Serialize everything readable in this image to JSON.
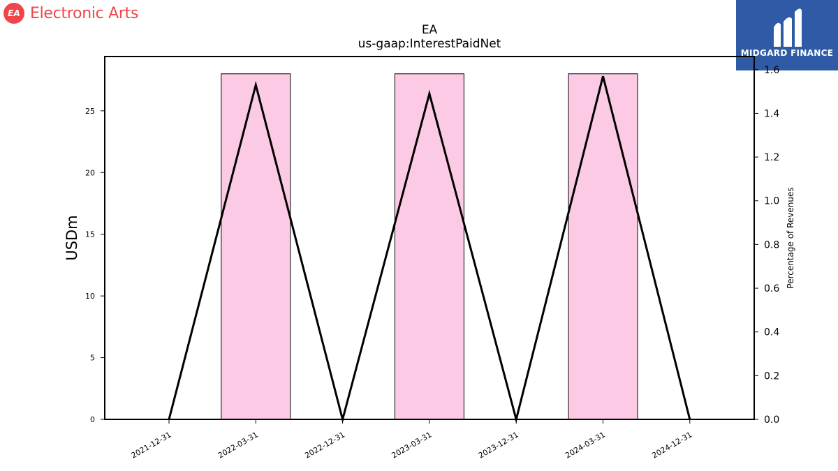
{
  "brand": {
    "badge": "EA",
    "name": "Electronic Arts"
  },
  "sponsor": {
    "name": "MIDGARD FINANCE"
  },
  "chart_data": {
    "type": "bar",
    "title": "EA",
    "subtitle": "us-gaap:InterestPaidNet",
    "ylabel": "USDm",
    "y2label": "Percentage of Revenues",
    "categories": [
      "2021-12-31",
      "2022-03-31",
      "2022-12-31",
      "2023-03-31",
      "2023-12-31",
      "2024-03-31",
      "2024-12-31"
    ],
    "ylim": [
      0,
      29.4
    ],
    "yticks": [
      0,
      5,
      10,
      15,
      20,
      25
    ],
    "y2lim": [
      0,
      1.66
    ],
    "y2ticks": [
      "0.0",
      "0.2",
      "0.4",
      "0.6",
      "0.8",
      "1.0",
      "1.2",
      "1.4",
      "1.6"
    ],
    "series": [
      {
        "type": "bar",
        "values": [
          null,
          28,
          null,
          28,
          null,
          28,
          null
        ],
        "color": "#fccae4"
      },
      {
        "type": "line",
        "axis": "right",
        "values": [
          0,
          1.53,
          0,
          1.49,
          0,
          1.57,
          0
        ],
        "color": "#000000"
      }
    ],
    "grid": false,
    "legend": "none"
  }
}
